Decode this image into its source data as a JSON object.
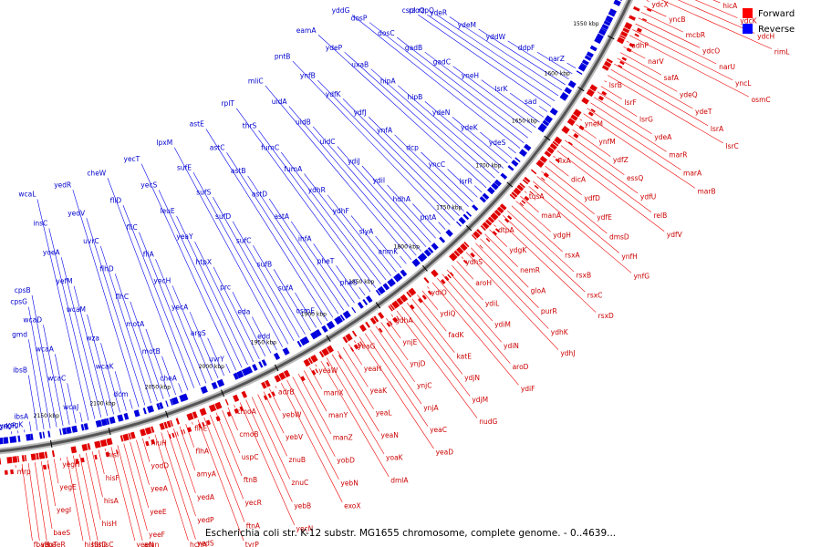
{
  "title": "Escherichia coli str. K-12 substr. MG1655 chromosome, complete genome. - 0..4639...",
  "legend": {
    "forward": "Forward",
    "reverse": "Reverse"
  },
  "ruler": [
    "1550 kbp",
    "1600 kbp",
    "1650 kbp",
    "1700 kbp",
    "1750 kbp",
    "1800 kbp",
    "1850 kbp",
    "1900 kbp",
    "1950 kbp",
    "2000 kbp",
    "2050 kbp",
    "2100 kbp",
    "2150 kbp"
  ],
  "genes": {
    "forward": [
      "ydcI",
      "yncJ",
      "ydcJ",
      "hicA",
      "ydcK",
      "ydcH",
      "rimL",
      "ydcX",
      "yncB",
      "mcbR",
      "ydcO",
      "narU",
      "yncL",
      "osmC",
      "adhP",
      "narV",
      "safA",
      "ydeQ",
      "ydeT",
      "lsrA",
      "lsrC",
      "lsrB",
      "lsrF",
      "lsrG",
      "ydeA",
      "marR",
      "marA",
      "marB",
      "yneM",
      "ynfM",
      "ydfZ",
      "essQ",
      "ydfU",
      "relB",
      "ydfV",
      "flxA",
      "dicA",
      "ydfD",
      "ydfE",
      "dmsD",
      "ynfH",
      "ynfG",
      "tqsA",
      "manA",
      "ydgH",
      "rsxA",
      "rsxB",
      "rsxC",
      "rsxD",
      "dtpA",
      "ydgK",
      "nemR",
      "gloA",
      "purR",
      "ydhK",
      "ydhJ",
      "ydhS",
      "aroH",
      "ydiL",
      "ydiM",
      "ydiN",
      "aroD",
      "ydiF",
      "ydiO",
      "ydiQ",
      "fadK",
      "katE",
      "ydjN",
      "ydjM",
      "nudG",
      "gdhA",
      "ynjE",
      "ynjD",
      "ynjC",
      "ynjA",
      "yeaC",
      "yeaD",
      "yeaG",
      "yeaH",
      "yeaK",
      "yeaL",
      "yeaN",
      "yoaK",
      "dmlA",
      "yeaW",
      "manX",
      "manY",
      "manZ",
      "yobD",
      "yebN",
      "exoX",
      "adrB",
      "yebW",
      "yebV",
      "znuB",
      "znuC",
      "yebB",
      "yecN",
      "cmoA",
      "cmoB",
      "uspC",
      "ftnB",
      "yecR",
      "ftnA",
      "tyrP",
      "flhE",
      "flhA",
      "amyA",
      "yedA",
      "yedP",
      "yedS",
      "hchA",
      "hiuH",
      "yodD",
      "yeeA",
      "yeeE",
      "yeeF",
      "amn",
      "yeeN",
      "hisI",
      "hisF",
      "hisA",
      "hisH",
      "hisC",
      "hisD",
      "hisB",
      "yegH",
      "yegE",
      "yegI",
      "baeS",
      "baeR",
      "yegT",
      "fbaB",
      "mrp"
    ],
    "reverse": [
      "narZ",
      "ddpF",
      "yddW",
      "ydeM",
      "ydeR",
      "rzpQ",
      "rzoQ",
      "cspI",
      "sad",
      "lsrK",
      "yneH",
      "gadC",
      "gadB",
      "dosC",
      "dosP",
      "yddG",
      "ydeS",
      "ydeK",
      "ydeN",
      "hipB",
      "hipA",
      "uxaB",
      "ydeP",
      "eamA",
      "lsrR",
      "yncC",
      "dcp",
      "ynfA",
      "ydfJ",
      "ydfK",
      "ynfB",
      "pntB",
      "pntA",
      "hdhA",
      "ydiI",
      "ydiJ",
      "uidC",
      "uidB",
      "uidA",
      "mliC",
      "anmK",
      "slyA",
      "ydhF",
      "ydhR",
      "fumA",
      "fumC",
      "thrS",
      "rplT",
      "pheS",
      "pheT",
      "ihfA",
      "astA",
      "astD",
      "astB",
      "astC",
      "astE",
      "osmE",
      "sufA",
      "sufB",
      "sufC",
      "sufD",
      "sufS",
      "sufE",
      "lpxM",
      "edd",
      "eda",
      "prc",
      "htpX",
      "yeaY",
      "leuE",
      "yecS",
      "yecT",
      "uvrY",
      "argS",
      "yecA",
      "yecH",
      "fliA",
      "fliC",
      "fliD",
      "cheW",
      "cheA",
      "motB",
      "motA",
      "flhC",
      "flhD",
      "uvrC",
      "yedV",
      "yedR",
      "dcm",
      "wcaK",
      "wza",
      "wcaM",
      "yefM",
      "yoeA",
      "insC",
      "wcaL",
      "wcaJ",
      "wcaC",
      "wcaA",
      "wcaD",
      "cpsB",
      "cpsG",
      "gmd",
      "ibsB",
      "ibsA",
      "yegK",
      "yegR",
      "ogrK"
    ]
  }
}
